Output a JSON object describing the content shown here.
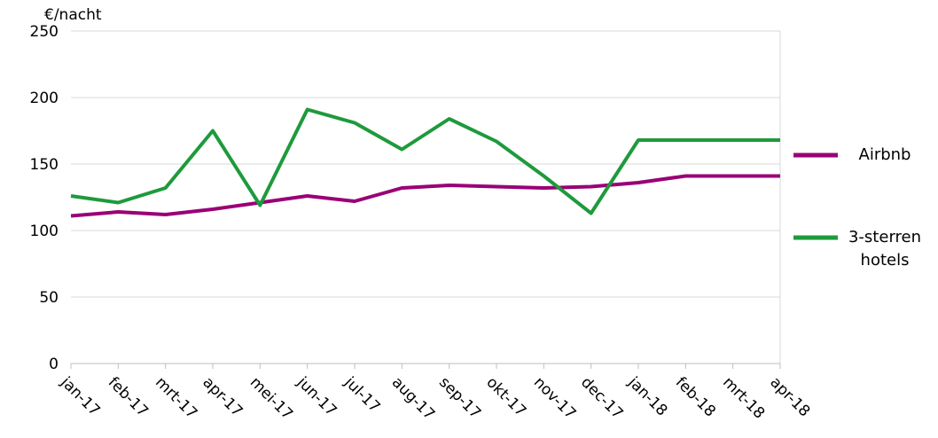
{
  "chart_data": {
    "type": "line",
    "y_label": "€/nacht",
    "categories": [
      "jan-17",
      "feb-17",
      "mrt-17",
      "apr-17",
      "mei-17",
      "jun-17",
      "jul-17",
      "aug-17",
      "sep-17",
      "okt-17",
      "nov-17",
      "dec-17",
      "jan-18",
      "feb-18",
      "mrt-18",
      "apr-18"
    ],
    "series": [
      {
        "name": "Airbnb",
        "color": "#990077",
        "values": [
          111,
          114,
          112,
          116,
          121,
          126,
          122,
          132,
          134,
          133,
          132,
          133,
          136,
          141,
          141,
          141
        ]
      },
      {
        "name": "3-sterren hotels",
        "color": "#1e9a3c",
        "values": [
          126,
          121,
          132,
          175,
          119,
          191,
          181,
          161,
          184,
          167,
          141,
          113,
          168,
          168,
          168,
          168
        ]
      }
    ],
    "ylim": [
      0,
      250
    ],
    "yticks": [
      0,
      50,
      100,
      150,
      200,
      250
    ],
    "grid": true
  }
}
